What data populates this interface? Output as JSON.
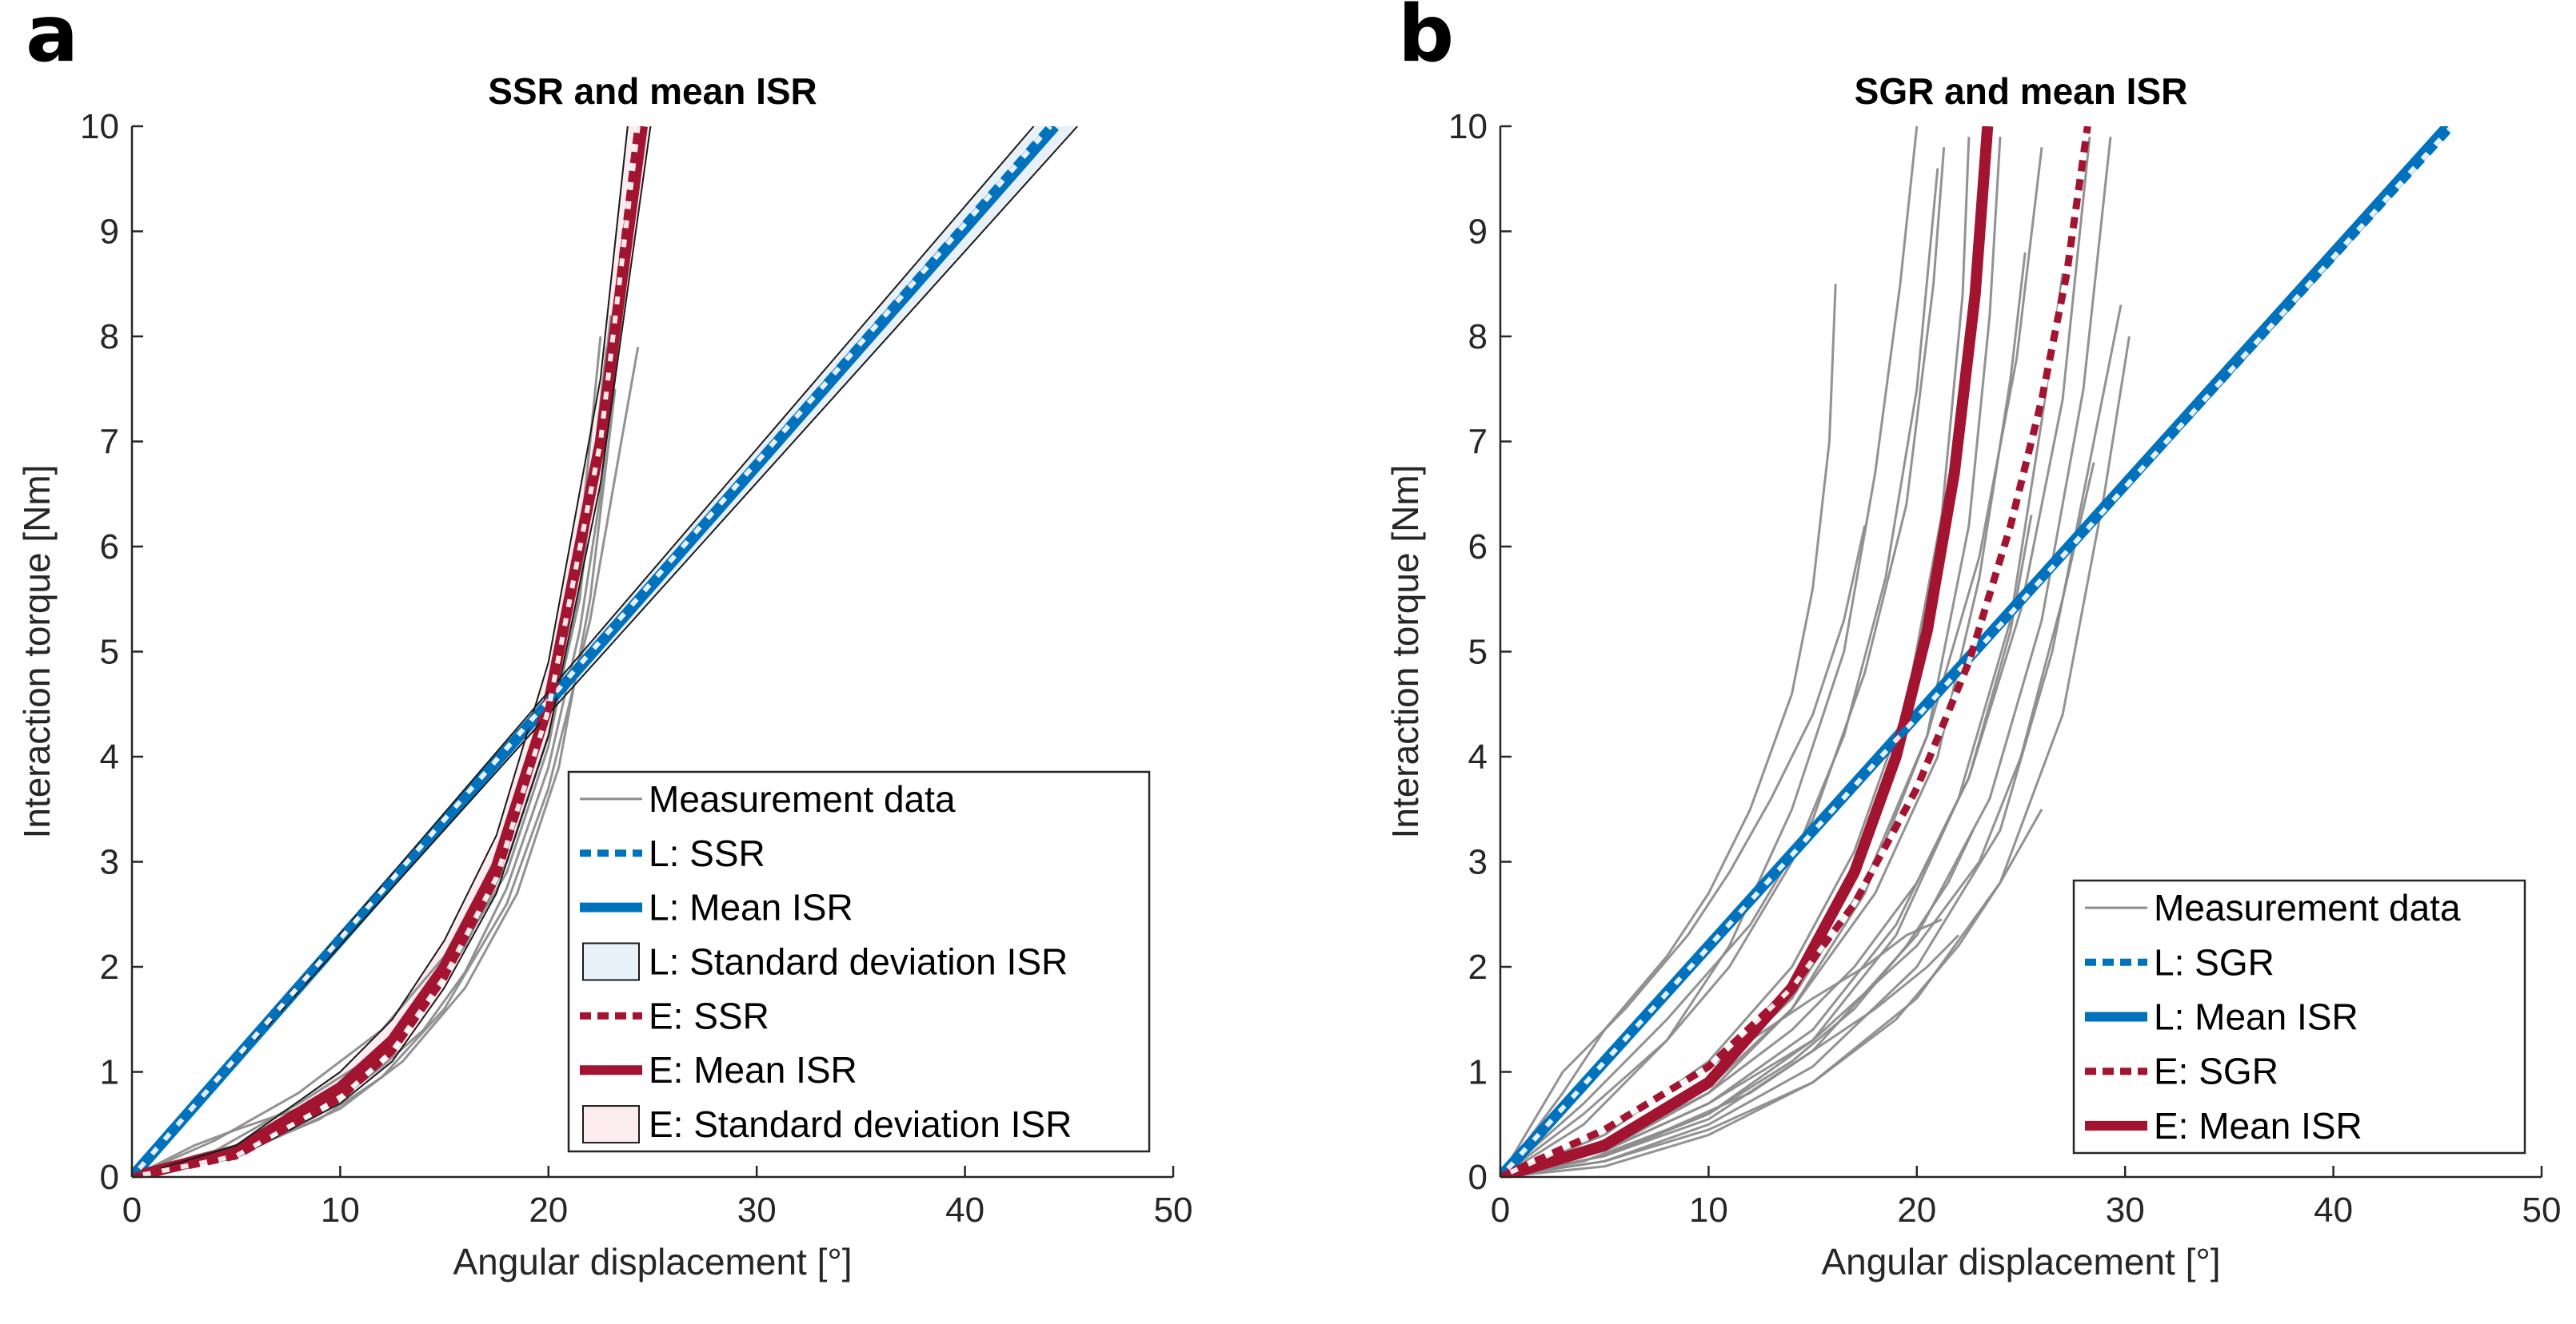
{
  "panel_labels": [
    "a",
    "b"
  ],
  "colors": {
    "linear": "#0072bd",
    "exponential": "#a2142f",
    "measurement": "#8c8c8c",
    "linear_band": "#e8f1f8",
    "exp_band": "#fbecef"
  },
  "chart_data": [
    {
      "type": "line",
      "panel": "a",
      "title": "SSR and mean ISR",
      "xlabel": "Angular displacement [°]",
      "ylabel": "Interaction torque [Nm]",
      "xlim": [
        0,
        50
      ],
      "ylim": [
        0,
        10
      ],
      "xticks": [
        "0",
        "10",
        "20",
        "30",
        "40",
        "50"
      ],
      "yticks": [
        "0",
        "1",
        "2",
        "3",
        "4",
        "5",
        "6",
        "7",
        "8",
        "9",
        "10"
      ],
      "grid": false,
      "legend_position": "bottom-right",
      "legend": [
        {
          "label": "Measurement data",
          "style": "thin-gray"
        },
        {
          "label": "L: SSR",
          "style": "dotted-blue"
        },
        {
          "label": "L: Mean ISR",
          "style": "solid-blue"
        },
        {
          "label": "L: Standard deviation ISR",
          "style": "patch-blue"
        },
        {
          "label": "E: SSR",
          "style": "dotted-red"
        },
        {
          "label": "E: Mean ISR",
          "style": "solid-red"
        },
        {
          "label": "E: Standard deviation ISR",
          "style": "patch-red"
        }
      ],
      "series": [
        {
          "name": "L: Mean ISR",
          "x": [
            0,
            44.3
          ],
          "y": [
            0,
            10
          ]
        },
        {
          "name": "L: SSR",
          "x": [
            0,
            44.1
          ],
          "y": [
            0,
            10
          ]
        },
        {
          "name": "L: Standard deviation ISR (upper)",
          "x": [
            0,
            43.3
          ],
          "y": [
            0,
            10
          ]
        },
        {
          "name": "L: Standard deviation ISR (lower)",
          "x": [
            0,
            45.4
          ],
          "y": [
            0,
            10
          ]
        },
        {
          "name": "E: Mean ISR",
          "x": [
            0,
            5,
            10,
            12.5,
            15,
            17.5,
            20,
            22.5,
            24.5
          ],
          "y": [
            0,
            0.25,
            0.85,
            1.3,
            2.0,
            2.95,
            4.5,
            7.0,
            10
          ]
        },
        {
          "name": "E: SSR",
          "x": [
            0,
            5,
            10,
            12.5,
            15,
            17.5,
            20,
            22.5,
            24.3
          ],
          "y": [
            0,
            0.2,
            0.75,
            1.2,
            1.9,
            2.85,
            4.45,
            7.0,
            10
          ]
        },
        {
          "name": "E: Standard deviation ISR (upper)",
          "x": [
            0,
            5,
            10,
            12.5,
            15,
            17.5,
            20,
            22.5,
            23.8
          ],
          "y": [
            0,
            0.3,
            1.0,
            1.5,
            2.25,
            3.25,
            4.9,
            7.6,
            10
          ]
        },
        {
          "name": "E: Standard deviation ISR (lower)",
          "x": [
            0,
            5,
            10,
            12.5,
            15,
            17.5,
            20,
            22.5,
            24.9
          ],
          "y": [
            0,
            0.18,
            0.7,
            1.1,
            1.8,
            2.7,
            4.2,
            6.6,
            10
          ]
        },
        {
          "name": "Measurement data",
          "x": [
            0,
            3,
            5,
            8,
            10,
            12,
            14,
            16,
            18,
            20,
            21.5,
            23
          ],
          "y": [
            0,
            0.3,
            0.45,
            0.65,
            0.9,
            1.2,
            1.6,
            2.2,
            3.0,
            4.2,
            5.5,
            8.2
          ]
        },
        {
          "name": "Measurement data",
          "x": [
            0,
            3,
            5,
            8,
            10,
            12,
            14,
            16,
            18,
            20,
            21.5,
            22.5,
            23.5
          ],
          "y": [
            0,
            0.2,
            0.3,
            0.5,
            0.75,
            1.05,
            1.4,
            1.95,
            2.75,
            3.9,
            5.2,
            6.5,
            8.4
          ]
        },
        {
          "name": "Measurement data",
          "x": [
            0,
            3,
            6,
            9,
            12,
            15,
            18,
            20,
            22,
            23.5,
            24.3
          ],
          "y": [
            0,
            0.1,
            0.3,
            0.55,
            0.95,
            1.6,
            2.6,
            3.7,
            5.3,
            7.0,
            7.9
          ]
        },
        {
          "name": "Measurement data",
          "x": [
            0,
            4,
            8,
            12,
            15,
            18,
            20,
            21.5,
            22.5
          ],
          "y": [
            0,
            0.35,
            0.8,
            1.4,
            2.1,
            3.2,
            4.4,
            6.0,
            8.0
          ]
        },
        {
          "name": "Measurement data",
          "x": [
            0,
            4,
            8,
            12,
            15,
            18,
            20,
            21.5,
            22.8
          ],
          "y": [
            0,
            0.25,
            0.7,
            1.2,
            1.9,
            2.9,
            4.1,
            5.6,
            7.9
          ]
        },
        {
          "name": "Measurement data",
          "x": [
            0,
            5,
            10,
            13,
            16,
            18.5,
            20.5,
            22,
            23.2
          ],
          "y": [
            0,
            0.2,
            0.65,
            1.1,
            1.8,
            2.7,
            3.9,
            5.5,
            7.5
          ]
        }
      ]
    },
    {
      "type": "line",
      "panel": "b",
      "title": "SGR and mean ISR",
      "xlabel": "Angular displacement [°]",
      "ylabel": "Interaction torque [Nm]",
      "xlim": [
        0,
        50
      ],
      "ylim": [
        0,
        10
      ],
      "xticks": [
        "0",
        "10",
        "20",
        "30",
        "40",
        "50"
      ],
      "yticks": [
        "0",
        "1",
        "2",
        "3",
        "4",
        "5",
        "6",
        "7",
        "8",
        "9",
        "10"
      ],
      "grid": false,
      "legend_position": "bottom-right",
      "legend": [
        {
          "label": "Measurement data",
          "style": "thin-gray"
        },
        {
          "label": "L: SGR",
          "style": "dotted-blue"
        },
        {
          "label": "L: Mean ISR",
          "style": "solid-blue"
        },
        {
          "label": "E: SGR",
          "style": "dotted-red"
        },
        {
          "label": "E: Mean ISR",
          "style": "solid-red"
        }
      ],
      "series": [
        {
          "name": "L: Mean ISR",
          "x": [
            0,
            45.5
          ],
          "y": [
            0,
            10
          ]
        },
        {
          "name": "L: SGR",
          "x": [
            0,
            45.7
          ],
          "y": [
            0,
            10
          ]
        },
        {
          "name": "E: Mean ISR",
          "x": [
            0,
            5,
            10,
            14,
            17,
            19,
            20.5,
            21.8,
            22.8,
            23.4
          ],
          "y": [
            0,
            0.3,
            0.9,
            1.8,
            2.9,
            4.0,
            5.2,
            6.7,
            8.4,
            10
          ]
        },
        {
          "name": "E: SGR",
          "x": [
            0,
            5,
            10,
            14,
            17,
            20,
            22.5,
            24.5,
            26,
            27.2,
            28.2
          ],
          "y": [
            0,
            0.45,
            1.05,
            1.8,
            2.6,
            3.7,
            4.9,
            6.2,
            7.4,
            8.6,
            10
          ]
        },
        {
          "name": "Measurement data",
          "x": [
            0,
            3,
            5,
            8,
            10,
            12,
            14,
            15,
            15.8,
            16.1
          ],
          "y": [
            0,
            0.8,
            1.4,
            2.1,
            2.7,
            3.5,
            4.6,
            5.6,
            7.0,
            8.5
          ]
        },
        {
          "name": "Measurement data",
          "x": [
            0,
            4,
            8,
            11,
            14,
            16.5,
            18,
            19.2,
            20
          ],
          "y": [
            0,
            0.5,
            1.3,
            2.2,
            3.5,
            5.0,
            6.7,
            8.5,
            10
          ]
        },
        {
          "name": "Measurement data",
          "x": [
            0,
            4,
            8,
            12,
            15,
            17.5,
            19.5,
            20.8,
            21.3
          ],
          "y": [
            0,
            0.7,
            1.5,
            2.4,
            3.4,
            4.8,
            6.4,
            8.5,
            9.8
          ]
        },
        {
          "name": "Measurement data",
          "x": [
            0,
            5,
            10,
            14,
            17,
            19.5,
            21.2,
            22.2,
            22.5
          ],
          "y": [
            0,
            0.4,
            1.1,
            2.0,
            3.1,
            4.5,
            6.3,
            8.4,
            9.9
          ]
        },
        {
          "name": "Measurement data",
          "x": [
            0,
            5,
            10,
            14,
            17.5,
            20.5,
            22.5,
            23.5,
            24
          ],
          "y": [
            0,
            0.25,
            0.8,
            1.6,
            2.7,
            4.2,
            6.2,
            8.2,
            9.9
          ]
        },
        {
          "name": "Measurement data",
          "x": [
            0,
            5,
            10,
            14,
            18,
            21,
            23,
            24.5,
            25.2
          ],
          "y": [
            0,
            0.3,
            0.85,
            1.6,
            2.7,
            4.0,
            5.7,
            7.6,
            8.8
          ]
        },
        {
          "name": "Measurement data",
          "x": [
            0,
            5,
            10,
            15,
            19,
            22,
            24.5,
            26,
            27
          ],
          "y": [
            0,
            0.2,
            0.6,
            1.3,
            2.3,
            3.6,
            5.3,
            7.2,
            8.6
          ]
        },
        {
          "name": "Measurement data",
          "x": [
            0,
            5,
            10,
            15,
            19,
            22.5,
            25,
            27,
            28.3
          ],
          "y": [
            0,
            0.25,
            0.7,
            1.4,
            2.4,
            3.8,
            5.4,
            7.4,
            9.9
          ]
        },
        {
          "name": "Measurement data",
          "x": [
            0,
            5,
            10,
            15,
            20,
            23.5,
            26,
            28,
            29.3
          ],
          "y": [
            0,
            0.2,
            0.55,
            1.2,
            2.3,
            3.6,
            5.3,
            7.5,
            9.9
          ]
        },
        {
          "name": "Measurement data",
          "x": [
            0,
            5,
            10,
            15,
            20,
            24,
            26.5,
            28.5,
            29.8
          ],
          "y": [
            0,
            0.15,
            0.5,
            1.05,
            2.0,
            3.3,
            5.0,
            7.0,
            8.3
          ]
        },
        {
          "name": "Measurement data",
          "x": [
            0,
            5,
            10,
            15,
            20,
            24,
            27,
            29,
            30.2
          ],
          "y": [
            0,
            0.1,
            0.4,
            0.9,
            1.7,
            2.8,
            4.4,
            6.5,
            8.0
          ]
        },
        {
          "name": "Measurement data",
          "x": [
            0,
            5,
            10,
            15,
            20,
            23,
            25,
            27,
            28.5
          ],
          "y": [
            0,
            0.25,
            0.7,
            1.3,
            2.2,
            3.0,
            4.0,
            5.5,
            6.8
          ]
        },
        {
          "name": "Measurement data",
          "x": [
            0,
            5,
            10,
            14,
            17,
            20,
            22.5,
            24.5,
            25.5
          ],
          "y": [
            0,
            0.3,
            0.8,
            1.4,
            2.0,
            2.8,
            3.8,
            5.2,
            6.3
          ]
        },
        {
          "name": "Measurement data",
          "x": [
            0,
            4,
            8,
            12,
            15,
            17.5,
            19.5,
            21.2
          ],
          "y": [
            0,
            0.35,
            0.8,
            1.3,
            1.7,
            2.0,
            2.3,
            2.45
          ]
        },
        {
          "name": "Measurement data",
          "x": [
            0,
            4,
            8,
            12,
            15,
            18,
            20.5,
            22
          ],
          "y": [
            0,
            0.15,
            0.45,
            0.8,
            1.2,
            1.6,
            2.0,
            2.3
          ]
        },
        {
          "name": "Measurement data",
          "x": [
            0,
            5,
            10,
            14,
            17,
            19.5,
            21.5,
            22.7
          ],
          "y": [
            0,
            0.2,
            0.6,
            1.1,
            1.6,
            2.2,
            2.8,
            3.3
          ]
        },
        {
          "name": "Measurement data",
          "x": [
            0,
            5,
            10,
            15,
            19,
            22,
            24,
            26
          ],
          "y": [
            0,
            0.15,
            0.45,
            0.9,
            1.5,
            2.2,
            2.8,
            3.5
          ]
        },
        {
          "name": "Measurement data",
          "x": [
            0,
            3,
            6,
            9,
            11,
            13,
            15,
            16.5,
            17.5
          ],
          "y": [
            0,
            1.0,
            1.6,
            2.3,
            2.9,
            3.6,
            4.4,
            5.3,
            6.2
          ]
        },
        {
          "name": "Measurement data",
          "x": [
            0,
            4,
            8,
            11,
            14,
            16.5,
            18.5,
            20,
            21
          ],
          "y": [
            0,
            0.6,
            1.3,
            2.0,
            3.0,
            4.2,
            5.7,
            7.5,
            9.6
          ]
        },
        {
          "name": "Measurement data",
          "x": [
            0,
            5,
            10,
            14,
            17.5,
            20.5,
            23,
            24.8,
            26
          ],
          "y": [
            0,
            0.35,
            0.95,
            1.7,
            2.8,
            4.2,
            5.9,
            7.8,
            9.8
          ]
        }
      ]
    }
  ]
}
